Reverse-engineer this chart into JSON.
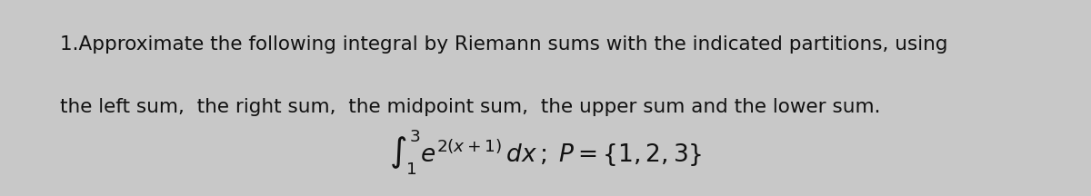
{
  "background_color": "#c8c8c8",
  "line1": "1.Approximate the following integral by Riemann sums with the indicated partitions, using",
  "line2": "the left sum,  the right sum,  the midpoint sum,  the upper sum and the lower sum.",
  "math_expr": "$\\int_1^3 e^{2(x+1)}\\,dx\\,;\\; P = \\{1, 2, 3\\}$",
  "text_color": "#111111",
  "fontsize_text": 15.5,
  "fontsize_math": 19,
  "fig_width": 12.0,
  "fig_height": 2.16
}
